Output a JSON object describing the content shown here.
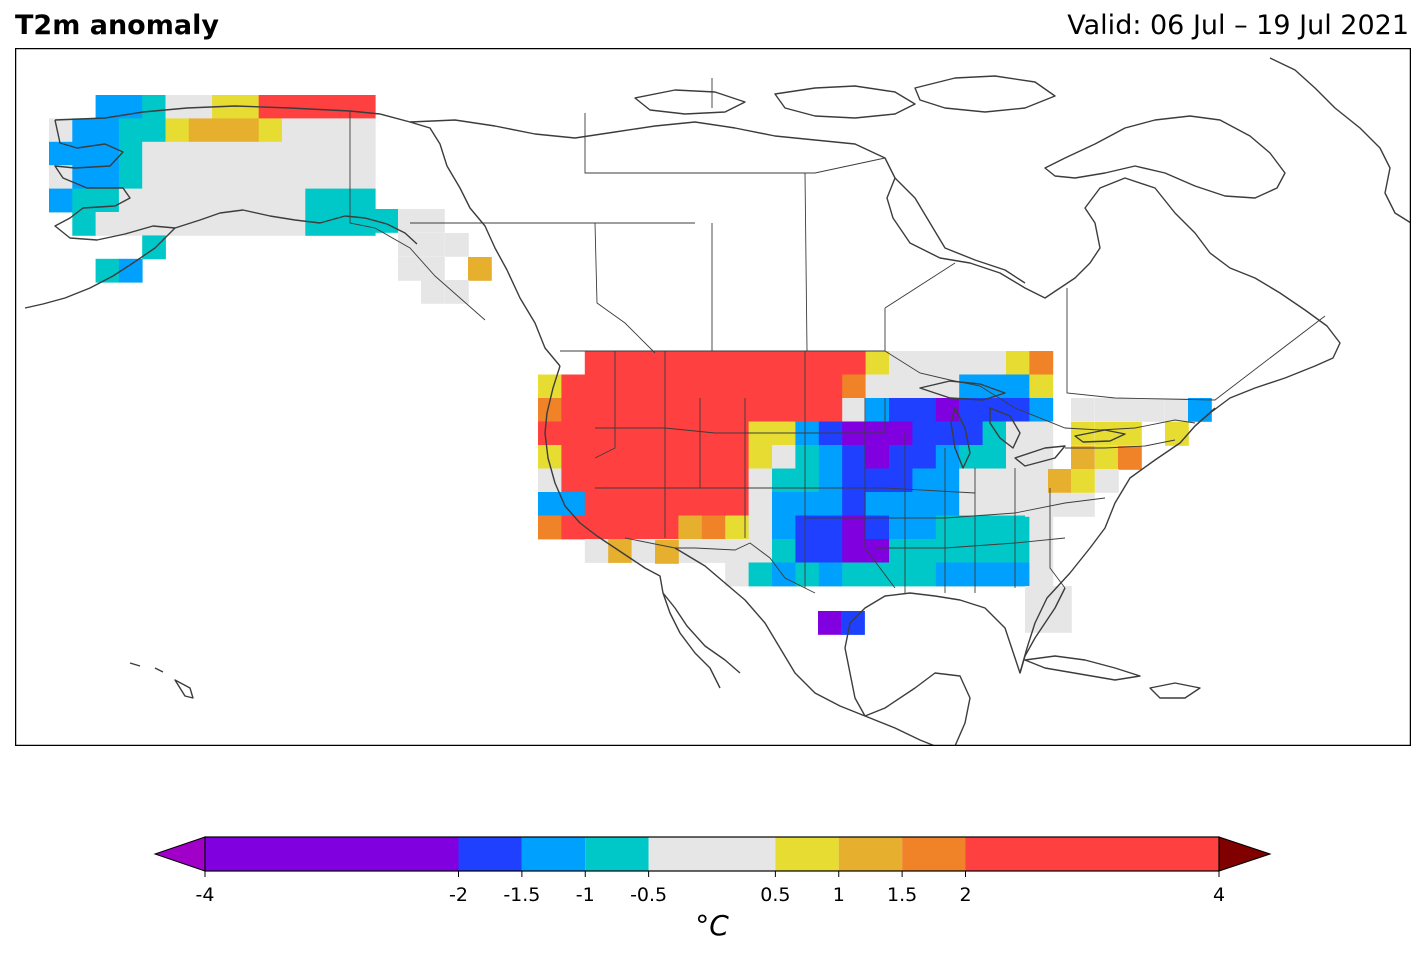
{
  "header": {
    "title": "T2m anomaly",
    "valid": "Valid: 06 Jul – 19 Jul 2021"
  },
  "colorbar": {
    "unit_label": "°C",
    "ticks": [
      {
        "value": -4,
        "label": "-4"
      },
      {
        "value": -2,
        "label": "-2"
      },
      {
        "value": -1.5,
        "label": "-1.5"
      },
      {
        "value": -1,
        "label": "-1"
      },
      {
        "value": -0.5,
        "label": "-0.5"
      },
      {
        "value": 0.5,
        "label": "0.5"
      },
      {
        "value": 1,
        "label": "1"
      },
      {
        "value": 1.5,
        "label": "1.5"
      },
      {
        "value": 2,
        "label": "2"
      },
      {
        "value": 4,
        "label": "4"
      }
    ],
    "bins": [
      {
        "min": -4,
        "max": -2,
        "color": "#8000e0"
      },
      {
        "min": -2,
        "max": -1.5,
        "color": "#2040ff"
      },
      {
        "min": -1.5,
        "max": -1,
        "color": "#00a0ff"
      },
      {
        "min": -1,
        "max": -0.5,
        "color": "#00c8c8"
      },
      {
        "min": -0.5,
        "max": 0.5,
        "color": "#e6e6e6"
      },
      {
        "min": 0.5,
        "max": 1,
        "color": "#e6dc32"
      },
      {
        "min": 1,
        "max": 1.5,
        "color": "#e6af2d"
      },
      {
        "min": 1.5,
        "max": 2,
        "color": "#f08228"
      },
      {
        "min": 2,
        "max": 4,
        "color": "#ff4040"
      }
    ],
    "under_color": "#a000c8",
    "over_color": "#800000"
  },
  "map_legend": {
    "code_meaning": {
      "V": "anomaly < -2 (-4 to -2 bin)",
      "B": "-2 to -1.5",
      "L": "-1.5 to -1",
      "C": "-1 to -0.5",
      "G": "-0.5 to 0.5",
      "Y": "0.5 to 1",
      "A": "1 to 1.5",
      "O": "1.5 to 2",
      "R": "2 to 4",
      "D": "> 4"
    }
  },
  "chart_data": {
    "type": "heatmap",
    "title": "T2m anomaly",
    "units": "°C",
    "regions": [
      {
        "name": "alaska",
        "rows": [
          "..LLCGGYYRRRRR",
          "GLLCCYAAAYGGGG",
          "LLLCGGGGGGGGGG",
          "GLLCGGGGGGGGGG",
          "LCCGGGGGGGGCCC",
          ".CGGGGGGGGGCCC",
          "....C.........",
          "..CL.........."
        ]
      },
      {
        "name": "conus",
        "rows": [
          "..RRRRRRRRRRRRYGGGGGYO",
          "YRRRRRRRRRRRROGGGGLLLY",
          "ORRRRRRRRRRRRGLBBVBBBL",
          "RRRRRRRRRYYLBVVVBBBCGG",
          "YRRRRRRRRYGCLBVBBLCCGG",
          "GRRRRRRRRGCCLBBBLLGGGG",
          "LLRRRRRRRGLLLBLLLLGGGG",
          "ORRRRRAOYGLBBVBLLCCCCG",
          "..GAGGGGGGCBBVVCCCCCCG",
          "........GCLCLCCCCLLLLG"
        ]
      }
    ]
  }
}
